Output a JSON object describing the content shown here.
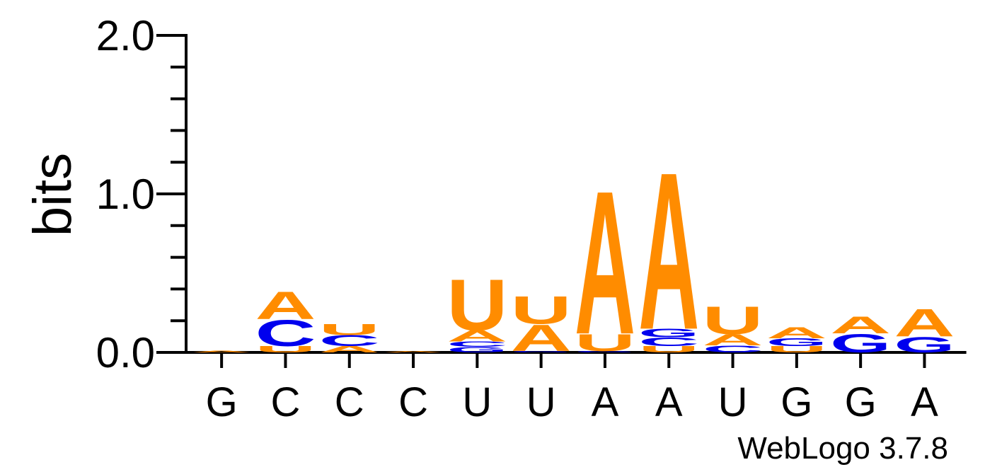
{
  "chart_data": {
    "type": "sequence-logo",
    "ylabel": "bits",
    "ylim": [
      0,
      2.0
    ],
    "yticks": [
      {
        "value": 0.0,
        "label": "0.0"
      },
      {
        "value": 1.0,
        "label": "1.0"
      },
      {
        "value": 2.0,
        "label": "2.0"
      }
    ],
    "ytick_step_minor": 0.2,
    "xlabels": [
      "G",
      "C",
      "C",
      "C",
      "U",
      "U",
      "A",
      "A",
      "U",
      "G",
      "G",
      "A"
    ],
    "footer": "WebLogo 3.7.8",
    "colors": {
      "A": "#ff8c00",
      "U": "#ff8c00",
      "C": "#0000ee",
      "G": "#0000ee"
    },
    "stacks": [
      [
        {
          "letter": "A",
          "h": 0.012
        }
      ],
      [
        {
          "letter": "U",
          "h": 0.04
        },
        {
          "letter": "C",
          "h": 0.17
        },
        {
          "letter": "A",
          "h": 0.18
        }
      ],
      [
        {
          "letter": "A",
          "h": 0.04
        },
        {
          "letter": "C",
          "h": 0.07
        },
        {
          "letter": "U",
          "h": 0.07
        }
      ],
      [
        {
          "letter": "A",
          "h": 0.01
        }
      ],
      [
        {
          "letter": "G",
          "h": 0.035
        },
        {
          "letter": "C",
          "h": 0.035
        },
        {
          "letter": "A",
          "h": 0.07
        },
        {
          "letter": "U",
          "h": 0.33
        }
      ],
      [
        {
          "letter": "G",
          "h": 0.01
        },
        {
          "letter": "A",
          "h": 0.17
        },
        {
          "letter": "U",
          "h": 0.18
        }
      ],
      [
        {
          "letter": "G",
          "h": 0.01
        },
        {
          "letter": "U",
          "h": 0.11
        },
        {
          "letter": "A",
          "h": 0.93
        }
      ],
      [
        {
          "letter": "U",
          "h": 0.04
        },
        {
          "letter": "C",
          "h": 0.055
        },
        {
          "letter": "G",
          "h": 0.055
        },
        {
          "letter": "A",
          "h": 1.02
        }
      ],
      [
        {
          "letter": "C",
          "h": 0.045
        },
        {
          "letter": "A",
          "h": 0.07
        },
        {
          "letter": "U",
          "h": 0.18
        }
      ],
      [
        {
          "letter": "U",
          "h": 0.04
        },
        {
          "letter": "G",
          "h": 0.05
        },
        {
          "letter": "A",
          "h": 0.07
        }
      ],
      [
        {
          "letter": "G",
          "h": 0.12
        },
        {
          "letter": "A",
          "h": 0.11
        }
      ],
      [
        {
          "letter": "G",
          "h": 0.1
        },
        {
          "letter": "A",
          "h": 0.18
        }
      ]
    ]
  }
}
